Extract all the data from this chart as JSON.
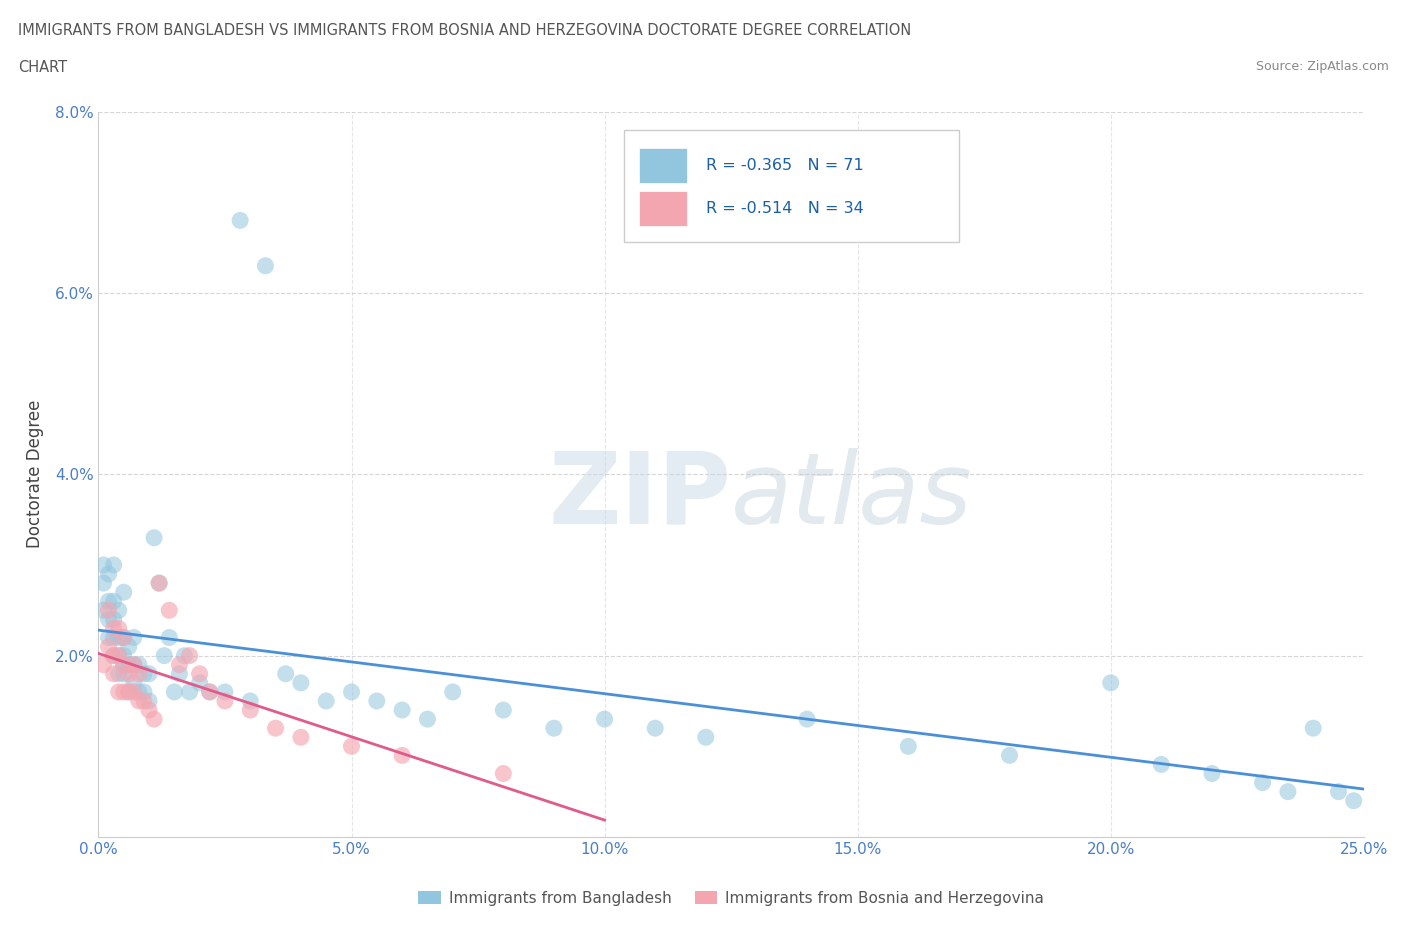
{
  "title_line1": "IMMIGRANTS FROM BANGLADESH VS IMMIGRANTS FROM BOSNIA AND HERZEGOVINA DOCTORATE DEGREE CORRELATION",
  "title_line2": "CHART",
  "source_text": "Source: ZipAtlas.com",
  "ylabel": "Doctorate Degree",
  "xlim": [
    0.0,
    0.25
  ],
  "ylim": [
    0.0,
    0.08
  ],
  "xticks": [
    0.0,
    0.05,
    0.1,
    0.15,
    0.2,
    0.25
  ],
  "xticklabels": [
    "0.0%",
    "5.0%",
    "10.0%",
    "15.0%",
    "20.0%",
    "25.0%"
  ],
  "yticks": [
    0.0,
    0.02,
    0.04,
    0.06,
    0.08
  ],
  "yticklabels": [
    "",
    "2.0%",
    "4.0%",
    "6.0%",
    "8.0%"
  ],
  "R_bangladesh": -0.365,
  "N_bangladesh": 71,
  "R_bosnia": -0.514,
  "N_bosnia": 34,
  "color_bangladesh": "#92c5de",
  "color_bosnia": "#f4a6b0",
  "line_color_bangladesh": "#4a90d9",
  "line_color_bosnia": "#e05a8a",
  "legend_label_bangladesh": "Immigrants from Bangladesh",
  "legend_label_bosnia": "Immigrants from Bosnia and Herzegovina",
  "bangladesh_x": [
    0.001,
    0.001,
    0.001,
    0.002,
    0.002,
    0.002,
    0.002,
    0.003,
    0.003,
    0.003,
    0.003,
    0.003,
    0.004,
    0.004,
    0.004,
    0.004,
    0.005,
    0.005,
    0.005,
    0.005,
    0.005,
    0.006,
    0.006,
    0.006,
    0.007,
    0.007,
    0.007,
    0.008,
    0.008,
    0.009,
    0.009,
    0.01,
    0.01,
    0.011,
    0.012,
    0.013,
    0.014,
    0.015,
    0.016,
    0.017,
    0.018,
    0.02,
    0.022,
    0.025,
    0.028,
    0.03,
    0.033,
    0.037,
    0.04,
    0.045,
    0.05,
    0.055,
    0.06,
    0.065,
    0.07,
    0.08,
    0.09,
    0.1,
    0.11,
    0.12,
    0.14,
    0.16,
    0.18,
    0.2,
    0.21,
    0.22,
    0.23,
    0.235,
    0.24,
    0.245,
    0.248
  ],
  "bangladesh_y": [
    0.025,
    0.028,
    0.03,
    0.022,
    0.024,
    0.026,
    0.029,
    0.02,
    0.022,
    0.024,
    0.026,
    0.03,
    0.018,
    0.02,
    0.022,
    0.025,
    0.018,
    0.019,
    0.02,
    0.022,
    0.027,
    0.016,
    0.019,
    0.021,
    0.017,
    0.019,
    0.022,
    0.016,
    0.019,
    0.016,
    0.018,
    0.015,
    0.018,
    0.033,
    0.028,
    0.02,
    0.022,
    0.016,
    0.018,
    0.02,
    0.016,
    0.017,
    0.016,
    0.016,
    0.068,
    0.015,
    0.063,
    0.018,
    0.017,
    0.015,
    0.016,
    0.015,
    0.014,
    0.013,
    0.016,
    0.014,
    0.012,
    0.013,
    0.012,
    0.011,
    0.013,
    0.01,
    0.009,
    0.017,
    0.008,
    0.007,
    0.006,
    0.005,
    0.012,
    0.005,
    0.004
  ],
  "bosnia_x": [
    0.001,
    0.002,
    0.002,
    0.003,
    0.003,
    0.003,
    0.004,
    0.004,
    0.004,
    0.005,
    0.005,
    0.005,
    0.006,
    0.006,
    0.007,
    0.007,
    0.008,
    0.008,
    0.009,
    0.01,
    0.011,
    0.012,
    0.014,
    0.016,
    0.018,
    0.02,
    0.022,
    0.025,
    0.03,
    0.035,
    0.04,
    0.05,
    0.06,
    0.08
  ],
  "bosnia_y": [
    0.019,
    0.021,
    0.025,
    0.018,
    0.02,
    0.023,
    0.016,
    0.02,
    0.023,
    0.016,
    0.019,
    0.022,
    0.016,
    0.018,
    0.016,
    0.019,
    0.015,
    0.018,
    0.015,
    0.014,
    0.013,
    0.028,
    0.025,
    0.019,
    0.02,
    0.018,
    0.016,
    0.015,
    0.014,
    0.012,
    0.011,
    0.01,
    0.009,
    0.007
  ]
}
